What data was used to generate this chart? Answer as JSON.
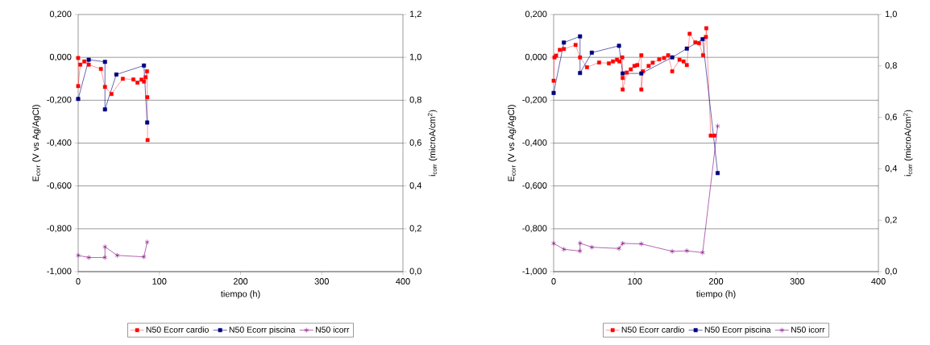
{
  "chart_data": [
    {
      "type": "line",
      "xlabel": "tiempo (h)",
      "ylabel": "E$_{corr}$ (V vs Ag/AgCl)",
      "y2label": "i$_{corr}$ (microA/cm$^{2}$)",
      "xlim": [
        0,
        400
      ],
      "xticks": [
        0,
        100,
        200,
        300,
        400
      ],
      "ylim": [
        -1.0,
        0.2
      ],
      "yticks": [
        {
          "value": -1.0,
          "label": "-1,000"
        },
        {
          "value": -0.8,
          "label": "-0,800"
        },
        {
          "value": -0.6,
          "label": "-0,600"
        },
        {
          "value": -0.4,
          "label": "-0,400"
        },
        {
          "value": -0.2,
          "label": "-0,200"
        },
        {
          "value": 0,
          "label": "0,000"
        },
        {
          "value": 0.2,
          "label": "0,200"
        }
      ],
      "y2lim": [
        0,
        1.2
      ],
      "y2ticks": [
        {
          "value": 0,
          "label": "0,0"
        },
        {
          "value": 0.2,
          "label": "0,2"
        },
        {
          "value": 0.4,
          "label": "0,4"
        },
        {
          "value": 0.6,
          "label": "0,6"
        },
        {
          "value": 0.8,
          "label": "0,8"
        },
        {
          "value": 1.0,
          "label": "1,0"
        },
        {
          "value": 1.2,
          "label": "1,2"
        }
      ],
      "grid": "y",
      "legend": "bottom",
      "series": [
        {
          "name": "N50 Ecorr cardio",
          "color": "#ff0000",
          "marker": "square",
          "x": [
            0,
            0,
            2.6,
            7.6,
            13,
            28,
            33,
            41,
            55,
            68,
            73,
            78,
            81,
            83,
            84.8,
            85.2,
            85.5
          ],
          "values": [
            -0.003,
            -0.134,
            -0.034,
            -0.019,
            -0.034,
            -0.054,
            -0.138,
            -0.171,
            -0.1,
            -0.103,
            -0.118,
            -0.104,
            -0.113,
            -0.093,
            -0.065,
            -0.186,
            -0.386
          ]
        },
        {
          "name": "N50 Ecorr piscina",
          "color": "#000080",
          "marker": "square",
          "x": [
            0,
            13,
            33,
            33,
            47,
            81,
            85
          ],
          "values": [
            -0.194,
            -0.011,
            -0.021,
            -0.243,
            -0.08,
            -0.038,
            -0.304
          ]
        },
        {
          "name": "N50 icorr",
          "color": "#800080",
          "marker": "cross",
          "axis": "y2",
          "x": [
            0,
            13,
            33,
            33,
            48,
            81,
            85
          ],
          "values": [
            0.076,
            0.066,
            0.066,
            0.116,
            0.076,
            0.069,
            0.138
          ]
        }
      ]
    },
    {
      "type": "line",
      "xlabel": "tiempo (h)",
      "ylabel": "E$_{corr}$ (V vs Ag/AgCl)",
      "y2label": "i$_{corr}$ (microA/cm$^{2}$)",
      "xlim": [
        0,
        400
      ],
      "xticks": [
        0,
        100,
        200,
        300,
        400
      ],
      "ylim": [
        -1.0,
        0.2
      ],
      "yticks": [
        {
          "value": -1.0,
          "label": "-1,000"
        },
        {
          "value": -0.8,
          "label": "-0,800"
        },
        {
          "value": -0.6,
          "label": "-0,600"
        },
        {
          "value": -0.4,
          "label": "-0,400"
        },
        {
          "value": -0.2,
          "label": "-0,200"
        },
        {
          "value": 0,
          "label": "0,000"
        },
        {
          "value": 0.2,
          "label": "0,200"
        }
      ],
      "y2lim": [
        0,
        1.0
      ],
      "y2ticks": [
        {
          "value": 0,
          "label": "0,0"
        },
        {
          "value": 0.2,
          "label": "0,2"
        },
        {
          "value": 0.4,
          "label": "0,4"
        },
        {
          "value": 0.6,
          "label": "0,6"
        },
        {
          "value": 0.8,
          "label": "0,8"
        },
        {
          "value": 1.0,
          "label": "1,0"
        }
      ],
      "grid": "y",
      "legend": "bottom",
      "series": [
        {
          "name": "N50 Ecorr cardio",
          "color": "#ff0000",
          "marker": "square",
          "x": [
            0,
            1,
            3,
            7.6,
            12.6,
            27,
            32.5,
            41,
            56,
            68,
            73,
            78,
            81,
            84.5,
            85,
            85,
            90,
            95,
            99.5,
            103,
            108,
            108,
            110,
            117,
            122,
            130,
            136,
            141,
            146,
            155,
            160,
            164,
            167.5,
            174.5,
            179,
            184,
            187.5,
            188,
            193.5,
            198
          ],
          "values": [
            -0.109,
            0,
            0.008,
            0.035,
            0.039,
            0.058,
            0,
            -0.046,
            -0.024,
            -0.028,
            -0.019,
            -0.011,
            -0.019,
            0,
            -0.096,
            -0.15,
            -0.071,
            -0.056,
            -0.04,
            -0.036,
            0.01,
            -0.15,
            -0.065,
            -0.04,
            -0.025,
            -0.009,
            -0.003,
            0.01,
            -0.065,
            -0.011,
            -0.019,
            -0.036,
            0.11,
            0.07,
            0.066,
            0.01,
            0.095,
            0.136,
            -0.365,
            -0.365
          ]
        },
        {
          "name": "N50 Ecorr piscina",
          "color": "#000080",
          "marker": "square",
          "x": [
            0,
            12.6,
            32.5,
            32.5,
            47,
            80.5,
            85,
            108,
            146,
            164,
            183.5,
            202
          ],
          "values": [
            -0.166,
            0.069,
            0.098,
            -0.073,
            0.022,
            0.054,
            -0.075,
            -0.075,
            0,
            0.041,
            0.085,
            -0.54
          ]
        },
        {
          "name": "N50 icorr",
          "color": "#800080",
          "marker": "cross",
          "axis": "y2",
          "x": [
            0,
            12.6,
            32.5,
            32.5,
            47,
            80.5,
            85,
            108,
            146,
            164,
            183.5,
            202
          ],
          "values": [
            0.11,
            0.087,
            0.08,
            0.111,
            0.095,
            0.09,
            0.11,
            0.108,
            0.079,
            0.081,
            0.074,
            0.566
          ]
        }
      ]
    }
  ]
}
